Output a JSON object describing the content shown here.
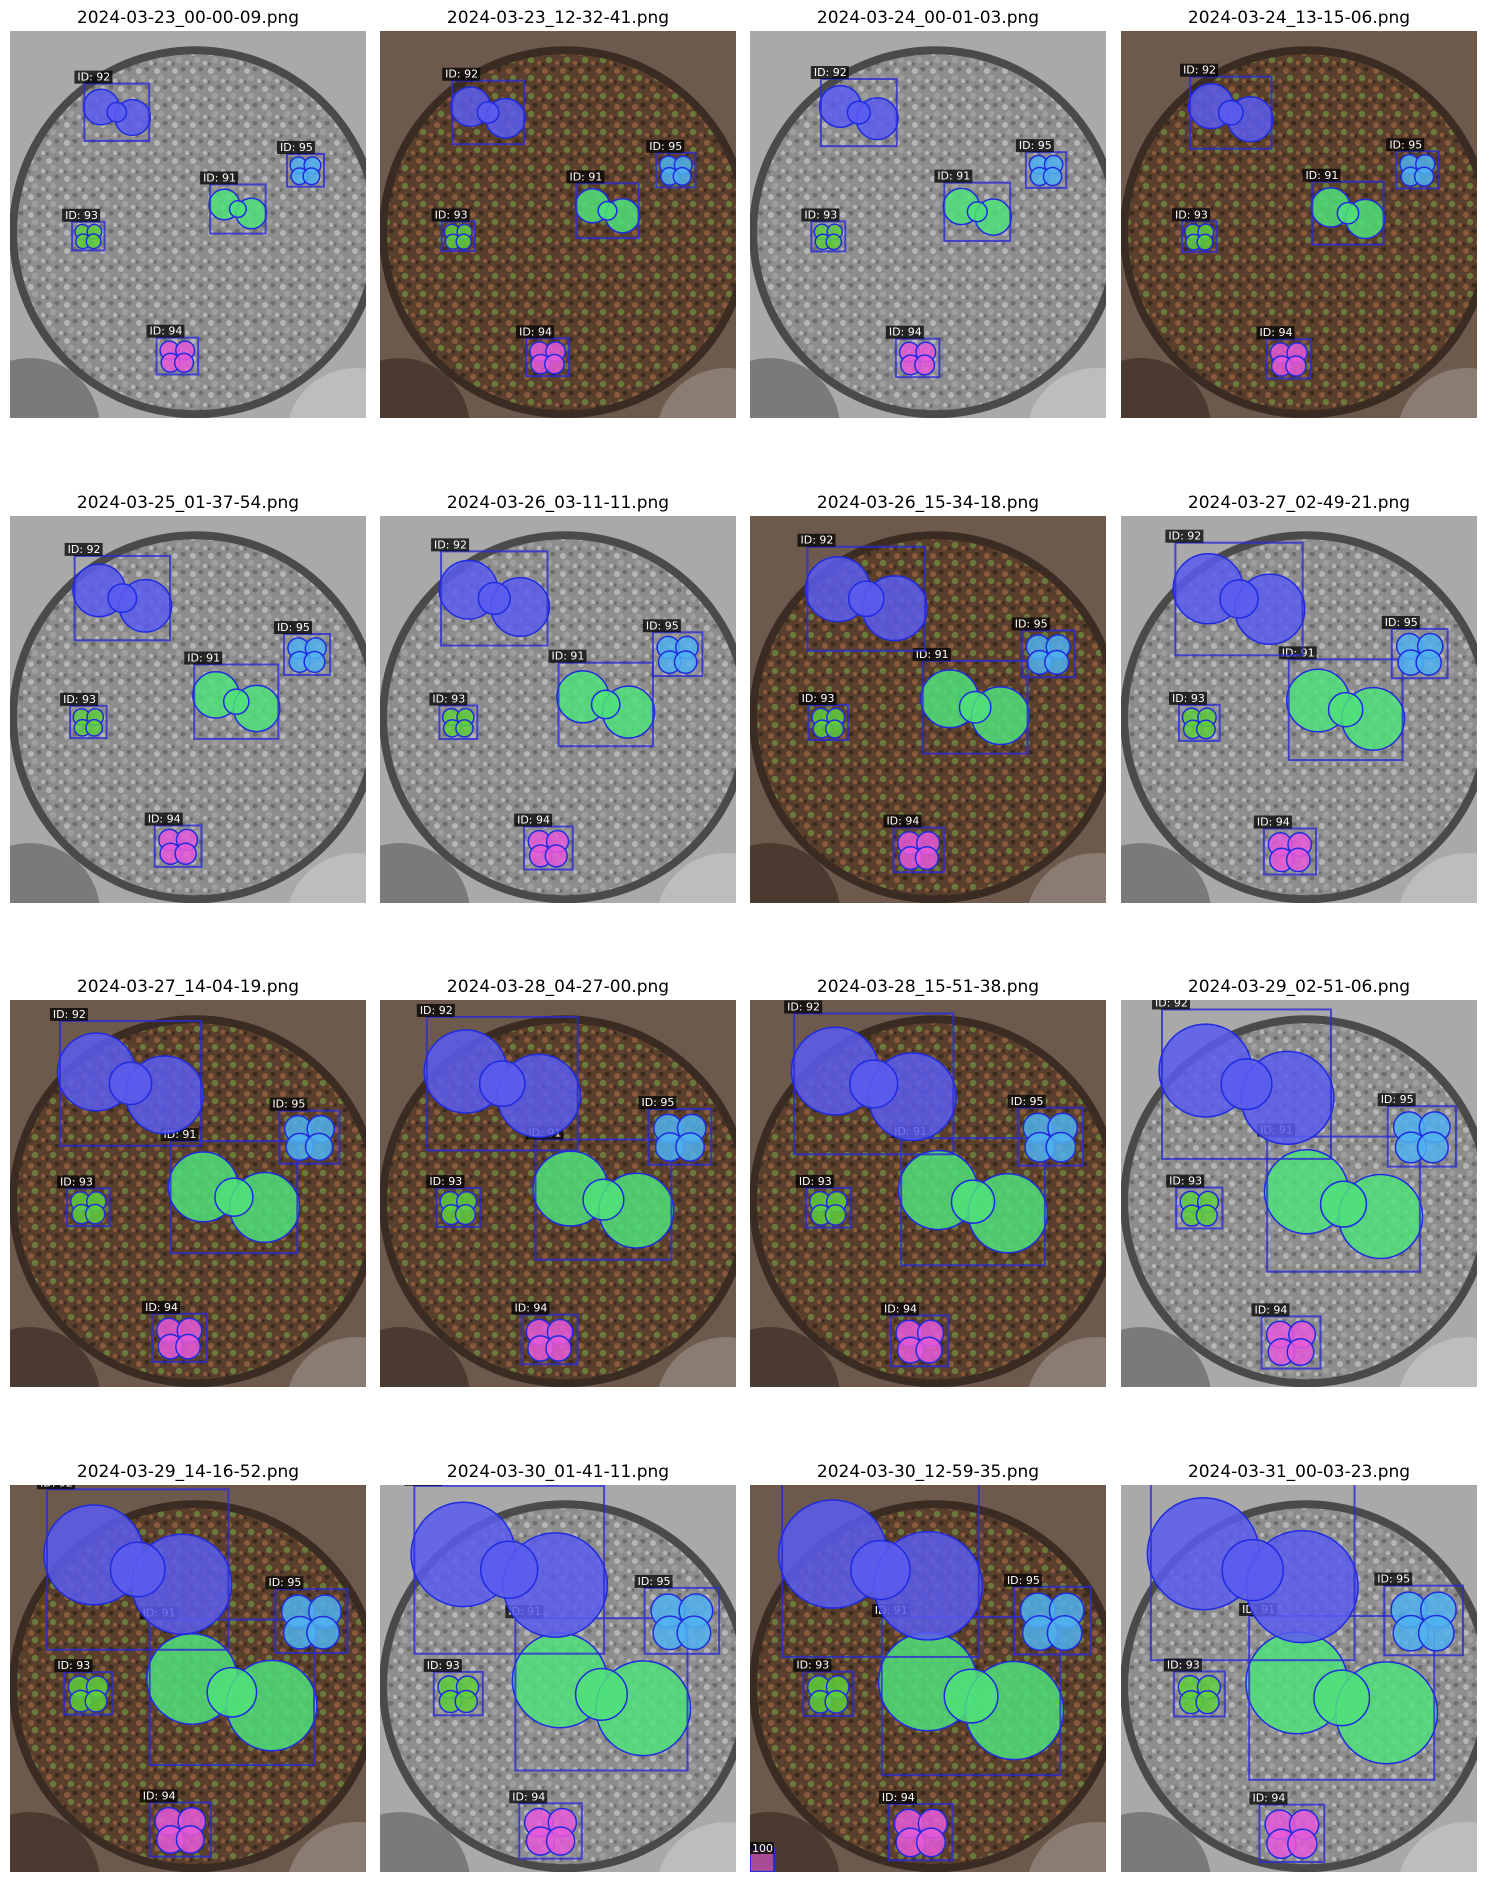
{
  "figure": {
    "panels": [
      {
        "title": "2024-03-23_00-00-09.png",
        "mode": "gray",
        "growth": 0.0,
        "extra_tag": ""
      },
      {
        "title": "2024-03-23_12-32-41.png",
        "mode": "color",
        "growth": 0.05,
        "extra_tag": ""
      },
      {
        "title": "2024-03-24_00-01-03.png",
        "mode": "gray",
        "growth": 0.08,
        "extra_tag": ""
      },
      {
        "title": "2024-03-24_13-15-06.png",
        "mode": "color",
        "growth": 0.12,
        "extra_tag": ""
      },
      {
        "title": "2024-03-25_01-37-54.png",
        "mode": "gray",
        "growth": 0.22,
        "extra_tag": ""
      },
      {
        "title": "2024-03-26_03-11-11.png",
        "mode": "gray",
        "growth": 0.3,
        "extra_tag": ""
      },
      {
        "title": "2024-03-26_15-34-18.png",
        "mode": "color",
        "growth": 0.38,
        "extra_tag": ""
      },
      {
        "title": "2024-03-27_02-49-21.png",
        "mode": "gray",
        "growth": 0.45,
        "extra_tag": ""
      },
      {
        "title": "2024-03-27_14-04-19.png",
        "mode": "color",
        "growth": 0.55,
        "extra_tag": ""
      },
      {
        "title": "2024-03-28_04-27-00.png",
        "mode": "color",
        "growth": 0.62,
        "extra_tag": ""
      },
      {
        "title": "2024-03-28_15-51-38.png",
        "mode": "color",
        "growth": 0.68,
        "extra_tag": ""
      },
      {
        "title": "2024-03-29_02-51-06.png",
        "mode": "gray",
        "growth": 0.75,
        "extra_tag": ""
      },
      {
        "title": "2024-03-29_14-16-52.png",
        "mode": "color",
        "growth": 0.84,
        "extra_tag": ""
      },
      {
        "title": "2024-03-30_01-41-11.png",
        "mode": "gray",
        "growth": 0.9,
        "extra_tag": ""
      },
      {
        "title": "2024-03-30_12-59-35.png",
        "mode": "color",
        "growth": 0.95,
        "extra_tag": "100"
      },
      {
        "title": "2024-03-31_00-03-23.png",
        "mode": "gray",
        "growth": 1.0,
        "extra_tag": ""
      }
    ],
    "plants": [
      {
        "id_label": "ID: 91",
        "color": "#4fe07a"
      },
      {
        "id_label": "ID: 92",
        "color": "#5a5cf0"
      },
      {
        "id_label": "ID: 93",
        "color": "#5fcf3c"
      },
      {
        "id_label": "ID: 94",
        "color": "#e659d8"
      },
      {
        "id_label": "ID: 95",
        "color": "#4fb2f0"
      }
    ],
    "box_color": "#2b2bd6",
    "tag_bg": "#000000",
    "tag_text_color": "#ffffff"
  }
}
